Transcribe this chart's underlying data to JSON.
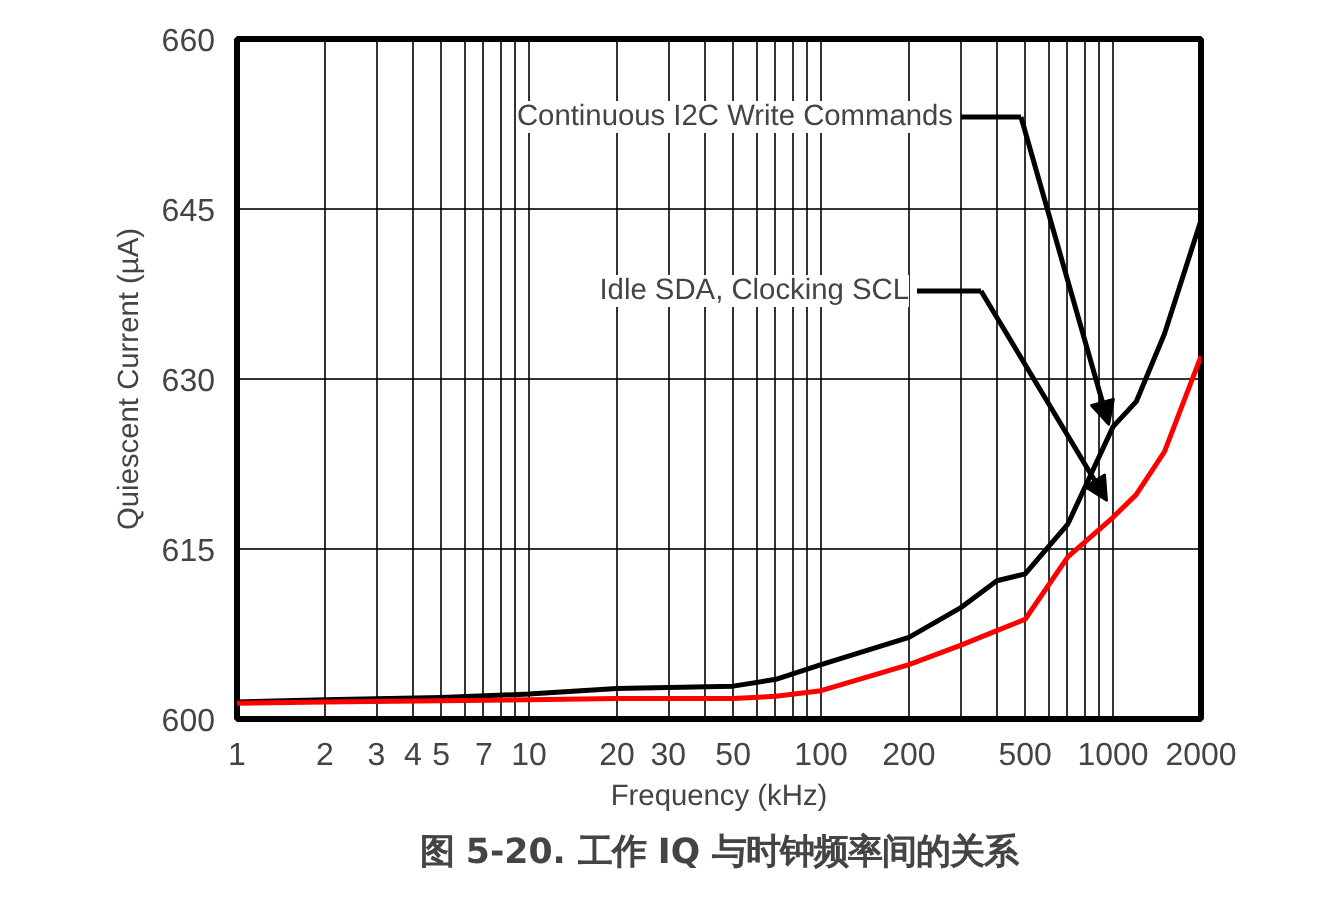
{
  "chart_data": {
    "type": "line",
    "title": "图 5-20. 工作 IQ 与时钟频率间的关系",
    "xlabel": "Frequency (kHz)",
    "ylabel": "Quiescent Current (µA)",
    "log": "x",
    "grid": true,
    "marker": "none",
    "line_style": "solid",
    "xlim": [
      1,
      2000
    ],
    "ylim": [
      600,
      660
    ],
    "xticks": [
      1,
      2,
      3,
      4,
      5,
      {
        "value": 6,
        "label": null
      },
      7,
      {
        "value": 8,
        "label": null
      },
      {
        "value": 9,
        "label": null
      },
      10,
      20,
      30,
      {
        "value": 40,
        "label": null
      },
      50,
      {
        "value": 60,
        "label": null
      },
      {
        "value": 70,
        "label": null
      },
      {
        "value": 80,
        "label": null
      },
      {
        "value": 90,
        "label": null
      },
      100,
      200,
      {
        "value": 300,
        "label": null
      },
      {
        "value": 400,
        "label": null
      },
      500,
      {
        "value": 600,
        "label": null
      },
      {
        "value": 700,
        "label": null
      },
      {
        "value": 800,
        "label": null
      },
      {
        "value": 900,
        "label": null
      },
      1000,
      2000
    ],
    "yticks": [
      600,
      615,
      630,
      645,
      660
    ],
    "x": [
      1,
      2,
      5,
      10,
      20,
      50,
      70,
      100,
      200,
      300,
      400,
      500,
      700,
      1000,
      1200,
      1500,
      2000
    ],
    "series": [
      {
        "color": "#000000",
        "values": [
          601.5,
          601.7,
          601.9,
          602.2,
          602.7,
          602.9,
          603.5,
          604.8,
          607.2,
          609.8,
          612.2,
          612.8,
          617.2,
          625.8,
          628.0,
          634.0,
          644.0
        ]
      },
      {
        "color": "#ff0000",
        "values": [
          601.4,
          601.5,
          601.6,
          601.7,
          601.8,
          601.8,
          602.0,
          602.5,
          604.8,
          606.5,
          607.8,
          608.8,
          614.3,
          617.8,
          619.8,
          623.6,
          632.0
        ]
      }
    ],
    "annotations": [
      "Continuous I2C Write Commands",
      "Idle SDA, Clocking SCL"
    ]
  }
}
